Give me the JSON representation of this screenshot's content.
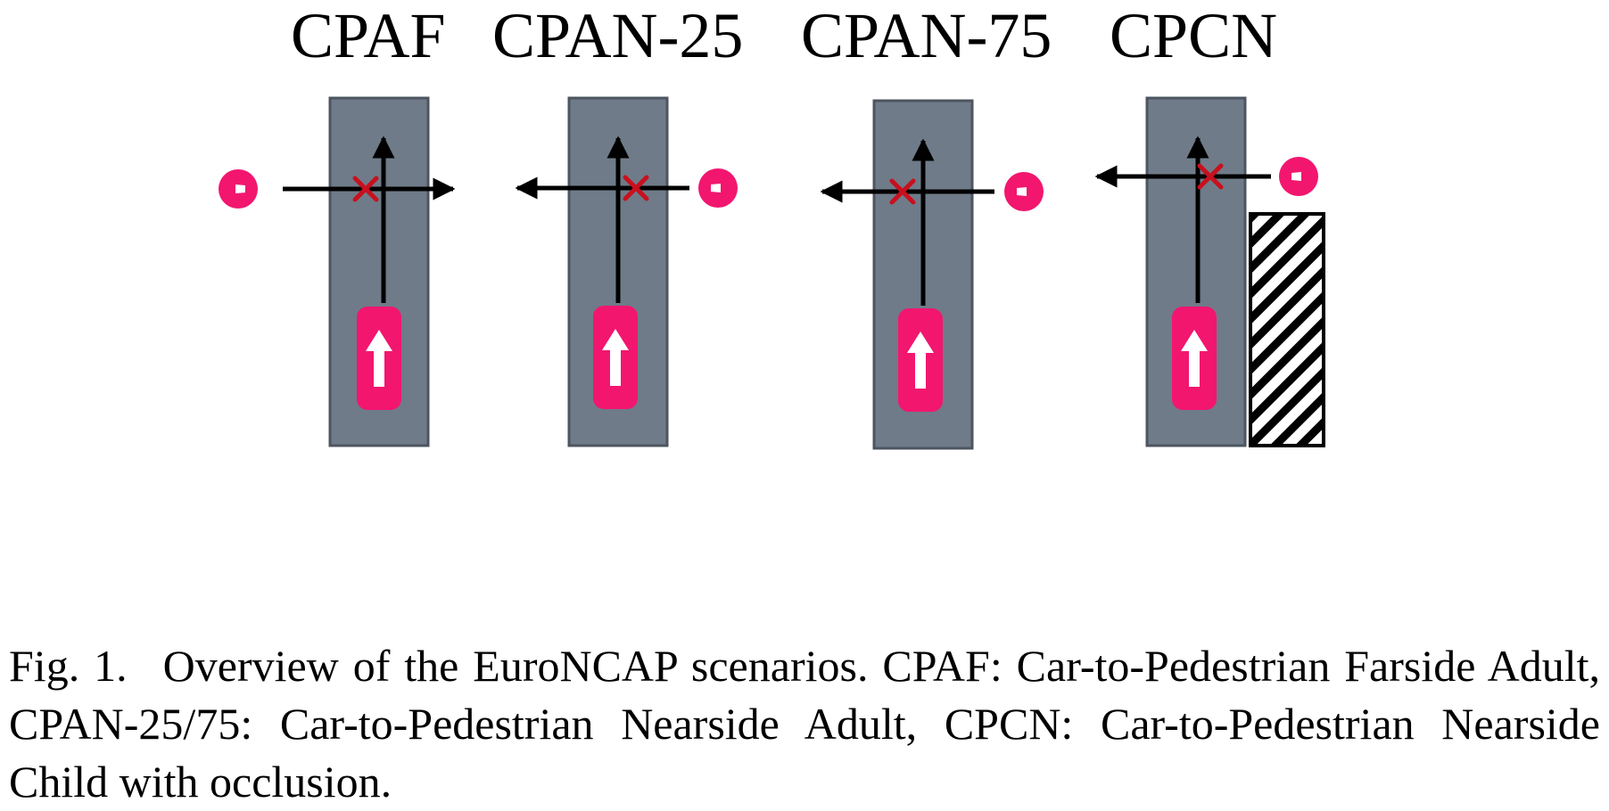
{
  "figure": {
    "scenario_titles": [
      "CPAF",
      "CPAN-25",
      "CPAN-75",
      "CPCN"
    ],
    "colors": {
      "road": "#6f7b89",
      "road_edge": "#4d5560",
      "vehicle": "#f2166f",
      "pedestrian": "#f2166f",
      "collision_marker": "#c8101e",
      "path_arrow": "#000000",
      "occlusion_hatch": "#000000"
    },
    "icons": [
      "pedestrian-icon",
      "vehicle-icon",
      "collision-marker-icon",
      "occlusion-obstacle-icon"
    ]
  },
  "caption": {
    "label": "Fig. 1.",
    "text": "Overview of the EuroNCAP scenarios. CPAF: Car-to-Pedestrian Farside Adult, CPAN-25/75: Car-to-Pedestrian Nearside Adult, CPCN: Car-to-Pedestrian Nearside Child with occlusion."
  }
}
